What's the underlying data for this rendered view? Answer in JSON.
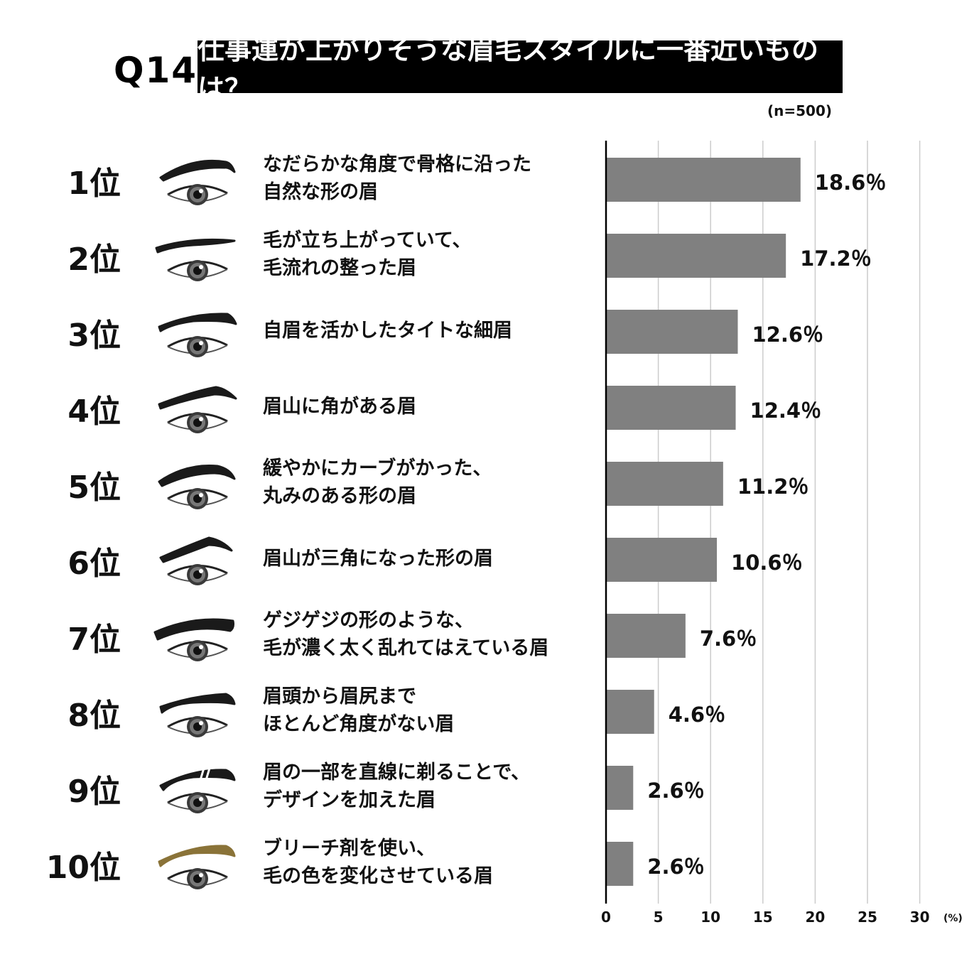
{
  "header": {
    "question_label": "Q14",
    "title": "仕事運が上がりそうな眉毛スタイルに一番近いものは？",
    "sample_size": "(n=500)"
  },
  "rows": [
    {
      "rank": "1位",
      "line1": "なだらかな角度で骨格に沿った",
      "line2": "自然な形の眉",
      "value_label": "18.6％"
    },
    {
      "rank": "2位",
      "line1": "毛が立ち上がっていて、",
      "line2": "毛流れの整った眉",
      "value_label": "17.2％"
    },
    {
      "rank": "3位",
      "line1": "自眉を活かしたタイトな細眉",
      "line2": "",
      "value_label": "12.6％"
    },
    {
      "rank": "4位",
      "line1": "眉山に角がある眉",
      "line2": "",
      "value_label": "12.4％"
    },
    {
      "rank": "5位",
      "line1": "緩やかにカーブがかった、",
      "line2": "丸みのある形の眉",
      "value_label": "11.2％"
    },
    {
      "rank": "6位",
      "line1": "眉山が三角になった形の眉",
      "line2": "",
      "value_label": "10.6％"
    },
    {
      "rank": "7位",
      "line1": "ゲジゲジの形のような、",
      "line2": "毛が濃く太く乱れてはえている眉",
      "value_label": "7.6％"
    },
    {
      "rank": "8位",
      "line1": "眉頭から眉尻まで",
      "line2": "ほとんど角度がない眉",
      "value_label": "4.6％"
    },
    {
      "rank": "9位",
      "line1": "眉の一部を直線に剃ることで、",
      "line2": "デザインを加えた眉",
      "value_label": "2.6％"
    },
    {
      "rank": "10位",
      "line1": "ブリーチ剤を使い、",
      "line2": "毛の色を変化させている眉",
      "value_label": "2.6％"
    }
  ],
  "chart_data": {
    "type": "bar",
    "orientation": "horizontal",
    "categories": [
      "1位",
      "2位",
      "3位",
      "4位",
      "5位",
      "6位",
      "7位",
      "8位",
      "9位",
      "10位"
    ],
    "values": [
      18.6,
      17.2,
      12.6,
      12.4,
      11.2,
      10.6,
      7.6,
      4.6,
      2.6,
      2.6
    ],
    "xlim": [
      0,
      30
    ],
    "xticks": [
      "0",
      "5",
      "10",
      "15",
      "20",
      "25",
      "30"
    ],
    "unit_label": "(%)",
    "grid": true,
    "colors": {
      "bar": "#808080",
      "grid": "#cccccc",
      "axis": "#000000",
      "brow_default": "#1a1a1a",
      "brow_bleached": "#8a7338"
    }
  }
}
